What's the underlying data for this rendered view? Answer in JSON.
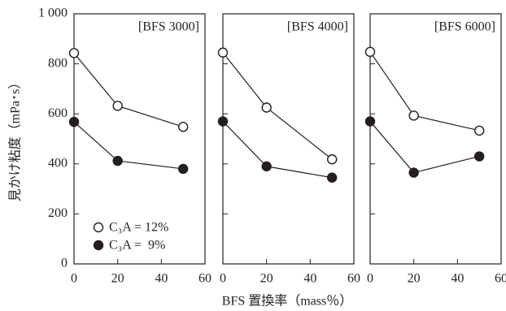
{
  "chart_data": {
    "type": "line",
    "ylabel": "見かけ粘度（mPa･s）",
    "xlabel": "BFS 置換率（mass％）",
    "ylim": [
      0,
      1000
    ],
    "yticks": [
      "0",
      "200",
      "400",
      "600",
      "800",
      "1 000"
    ],
    "xlim": [
      0,
      60
    ],
    "xticks": [
      "0",
      "20",
      "40",
      "60"
    ],
    "legend": {
      "placement": "lower-left of first panel",
      "entries": [
        {
          "label": "C₃A = 12%",
          "marker": "open-circle"
        },
        {
          "label": "C₃A =  9%",
          "marker": "filled-circle"
        }
      ]
    },
    "panels": [
      {
        "label": "[BFS 3000]",
        "x": [
          0,
          20,
          50
        ],
        "series": [
          {
            "name": "C₃A = 12%",
            "marker": "open-circle",
            "values": [
              843,
              632,
              548
            ]
          },
          {
            "name": "C₃A = 9%",
            "marker": "filled-circle",
            "values": [
              568,
              412,
              380
            ]
          }
        ]
      },
      {
        "label": "[BFS 4000]",
        "x": [
          0,
          20,
          50
        ],
        "series": [
          {
            "name": "C₃A = 12%",
            "marker": "open-circle",
            "values": [
              845,
              625,
              418
            ]
          },
          {
            "name": "C₃A = 9%",
            "marker": "filled-circle",
            "values": [
              570,
              390,
              345
            ]
          }
        ]
      },
      {
        "label": "[BFS 6000]",
        "x": [
          0,
          20,
          50
        ],
        "series": [
          {
            "name": "C₃A = 12%",
            "marker": "open-circle",
            "values": [
              848,
              593,
              533
            ]
          },
          {
            "name": "C₃A = 9%",
            "marker": "filled-circle",
            "values": [
              570,
              365,
              430
            ]
          }
        ]
      }
    ],
    "colors": {
      "line": "#231f20",
      "open_fill": "#ffffff",
      "filled": "#231f20"
    }
  }
}
